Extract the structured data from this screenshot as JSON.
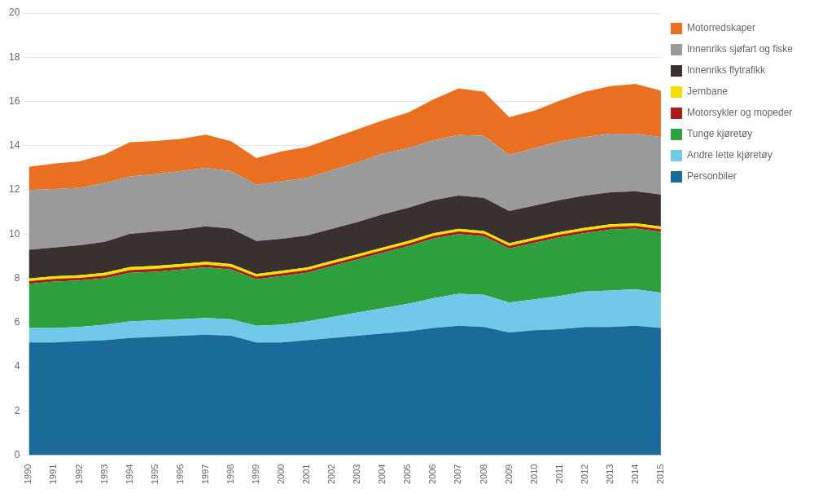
{
  "chart_data": {
    "type": "area",
    "stacked": true,
    "x": [
      1990,
      1991,
      1992,
      1993,
      1994,
      1995,
      1996,
      1997,
      1998,
      1999,
      2000,
      2001,
      2002,
      2003,
      2004,
      2005,
      2006,
      2007,
      2008,
      2009,
      2010,
      2011,
      2012,
      2013,
      2014,
      2015
    ],
    "xlim": [
      1990,
      2015
    ],
    "xticks": [
      1990,
      1991,
      1992,
      1993,
      1994,
      1995,
      1996,
      1997,
      1998,
      1999,
      2000,
      2001,
      2002,
      2003,
      2004,
      2005,
      2006,
      2007,
      2008,
      2009,
      2010,
      2011,
      2012,
      2013,
      2014,
      2015
    ],
    "ylim": [
      0,
      20
    ],
    "yticks": [
      0,
      2,
      4,
      6,
      8,
      10,
      12,
      14,
      16,
      18,
      20
    ],
    "grid": "y",
    "legend": "right",
    "series": [
      {
        "name": "Personbiler",
        "color": "#1a6b9a",
        "values": [
          5.1,
          5.1,
          5.15,
          5.2,
          5.3,
          5.35,
          5.4,
          5.45,
          5.4,
          5.1,
          5.1,
          5.2,
          5.3,
          5.4,
          5.5,
          5.6,
          5.75,
          5.85,
          5.8,
          5.55,
          5.65,
          5.7,
          5.8,
          5.8,
          5.85,
          5.75
        ]
      },
      {
        "name": "Andre lette kjøretøy",
        "color": "#72c8e8",
        "values": [
          0.65,
          0.65,
          0.65,
          0.7,
          0.75,
          0.75,
          0.75,
          0.75,
          0.75,
          0.75,
          0.8,
          0.85,
          0.95,
          1.05,
          1.15,
          1.25,
          1.35,
          1.45,
          1.45,
          1.35,
          1.4,
          1.5,
          1.6,
          1.65,
          1.65,
          1.6
        ]
      },
      {
        "name": "Tunge kjøretøy",
        "color": "#2da03e",
        "values": [
          2.0,
          2.1,
          2.1,
          2.1,
          2.2,
          2.2,
          2.25,
          2.3,
          2.25,
          2.1,
          2.2,
          2.2,
          2.3,
          2.4,
          2.5,
          2.6,
          2.7,
          2.7,
          2.65,
          2.45,
          2.55,
          2.65,
          2.65,
          2.75,
          2.75,
          2.75
        ]
      },
      {
        "name": "Motorsykler og mopeder",
        "color": "#aa1c1c",
        "values": [
          0.12,
          0.12,
          0.12,
          0.12,
          0.12,
          0.12,
          0.12,
          0.12,
          0.12,
          0.12,
          0.12,
          0.12,
          0.12,
          0.12,
          0.12,
          0.12,
          0.12,
          0.12,
          0.12,
          0.12,
          0.12,
          0.12,
          0.12,
          0.12,
          0.12,
          0.12
        ]
      },
      {
        "name": "Jernbane",
        "color": "#f0e000",
        "values": [
          0.12,
          0.12,
          0.12,
          0.13,
          0.14,
          0.14,
          0.13,
          0.13,
          0.13,
          0.12,
          0.12,
          0.12,
          0.12,
          0.12,
          0.12,
          0.12,
          0.12,
          0.12,
          0.12,
          0.12,
          0.12,
          0.12,
          0.12,
          0.12,
          0.12,
          0.12
        ]
      },
      {
        "name": "Innenriks flytrafikk",
        "color": "#3a3030",
        "values": [
          1.3,
          1.3,
          1.35,
          1.4,
          1.5,
          1.55,
          1.55,
          1.6,
          1.6,
          1.5,
          1.45,
          1.45,
          1.45,
          1.45,
          1.5,
          1.5,
          1.5,
          1.5,
          1.5,
          1.45,
          1.45,
          1.45,
          1.45,
          1.45,
          1.45,
          1.45
        ]
      },
      {
        "name": "Innenriks sjøfart og fiske",
        "color": "#9a9a9a",
        "values": [
          2.7,
          2.65,
          2.6,
          2.65,
          2.6,
          2.6,
          2.65,
          2.65,
          2.6,
          2.55,
          2.6,
          2.6,
          2.65,
          2.7,
          2.75,
          2.7,
          2.7,
          2.75,
          2.8,
          2.55,
          2.6,
          2.65,
          2.65,
          2.65,
          2.6,
          2.6
        ]
      },
      {
        "name": "Motorredskaper",
        "color": "#e87020",
        "values": [
          1.05,
          1.15,
          1.2,
          1.3,
          1.55,
          1.5,
          1.45,
          1.5,
          1.35,
          1.2,
          1.35,
          1.4,
          1.45,
          1.5,
          1.5,
          1.6,
          1.85,
          2.1,
          2.0,
          1.7,
          1.7,
          1.85,
          2.05,
          2.15,
          2.25,
          2.1
        ]
      }
    ]
  }
}
